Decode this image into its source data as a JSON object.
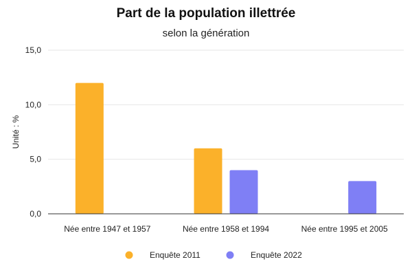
{
  "chart_data": {
    "type": "bar",
    "title": "Part de la population illettrée",
    "subtitle": "selon la génération",
    "ylabel": "Unité : %",
    "xlabel": "",
    "ylim": [
      0,
      15
    ],
    "yticks": [
      "0,0",
      "5,0",
      "10,0",
      "15,0"
    ],
    "ytick_values": [
      0,
      5,
      10,
      15
    ],
    "grid": true,
    "legend_position": "bottom",
    "categories": [
      "Née entre 1947 et 1957",
      "Née entre 1958 et 1994",
      "Née entre 1995 et 2005"
    ],
    "series": [
      {
        "name": "Enquête 2011",
        "color": "#FBB12A",
        "values": [
          12,
          6,
          null
        ]
      },
      {
        "name": "Enquête 2022",
        "color": "#7F7FF5",
        "values": [
          null,
          4,
          3
        ]
      }
    ]
  }
}
